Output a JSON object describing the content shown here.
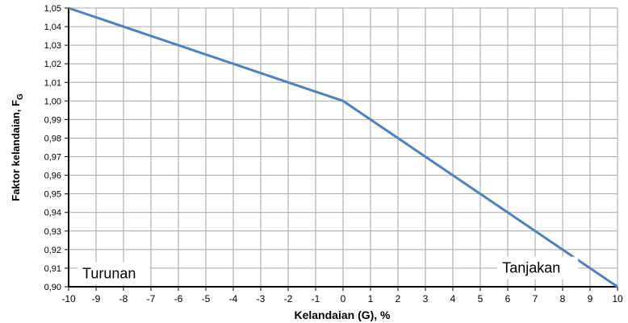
{
  "chart_data": {
    "type": "line",
    "title": "",
    "xlabel": "Kelandaian (G), %",
    "ylabel_main": "Faktor kelandaian, F",
    "ylabel_sub": "G",
    "xlim": [
      -10,
      10
    ],
    "ylim": [
      0.9,
      1.05
    ],
    "x_ticks": [
      -10,
      -9,
      -8,
      -7,
      -6,
      -5,
      -4,
      -3,
      -2,
      -1,
      0,
      1,
      2,
      3,
      4,
      5,
      6,
      7,
      8,
      9,
      10
    ],
    "y_tick_labels": [
      "0,90",
      "0,91",
      "0,92",
      "0,93",
      "0,94",
      "0,95",
      "0,96",
      "0,97",
      "0,98",
      "0,99",
      "1,00",
      "1,01",
      "1,02",
      "1,03",
      "1,04",
      "1,05"
    ],
    "grid": true,
    "series": [
      {
        "x": [
          -10,
          0,
          10
        ],
        "y": [
          1.05,
          1.0,
          0.9
        ],
        "color": "#4f81bd"
      }
    ],
    "annotations": [
      {
        "text": "Turunan",
        "x": -9.5,
        "y": 0.9045
      },
      {
        "text": "Tanjakan",
        "x": 5.8,
        "y": 0.9075
      }
    ]
  }
}
